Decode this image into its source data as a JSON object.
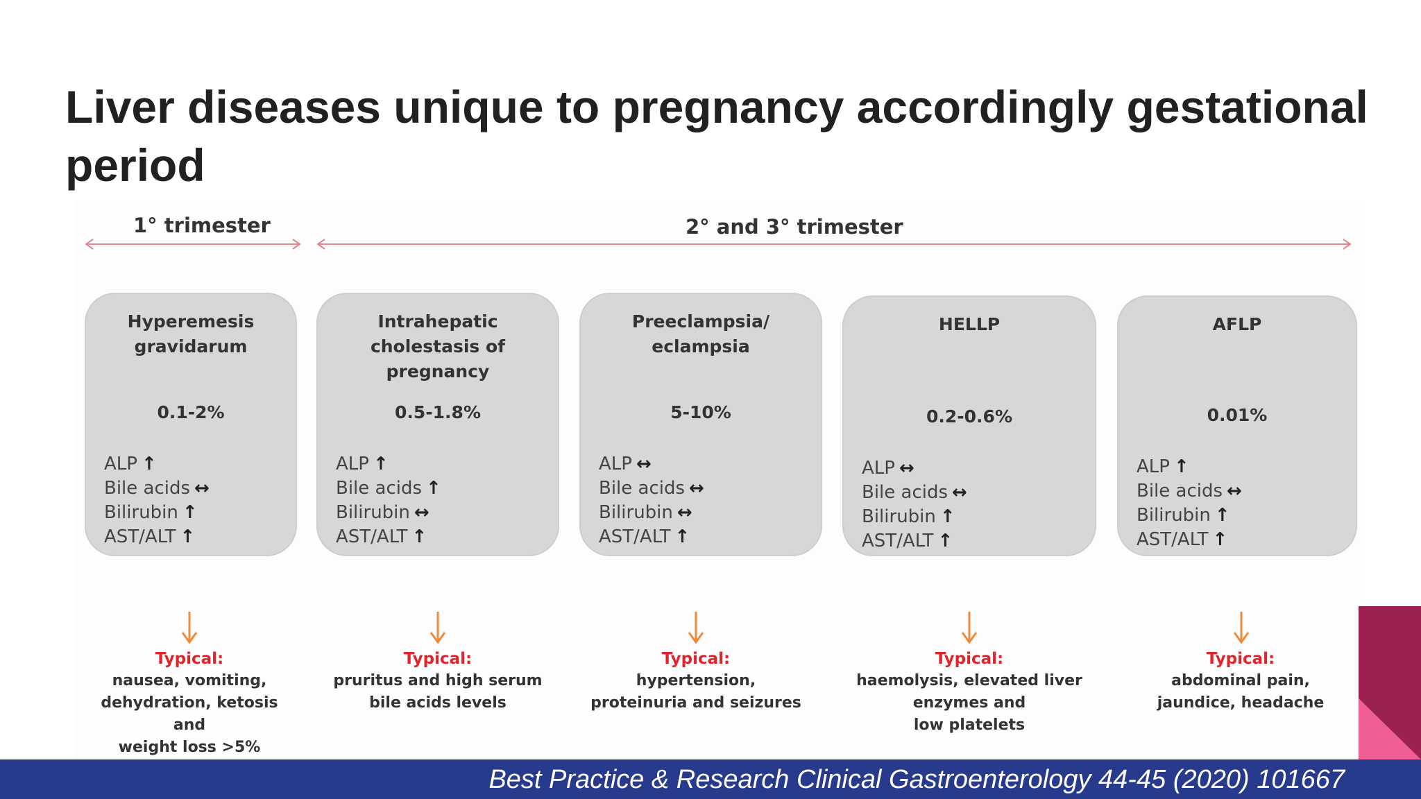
{
  "title": "Liver diseases unique to pregnancy accordingly gestational period",
  "trimesters": {
    "first": "1° trimester",
    "second_third": "2° and 3° trimester"
  },
  "cards": [
    {
      "name": "Hyperemesis\ngravidarum",
      "percent": "0.1-2%",
      "labs": [
        {
          "label": "ALP",
          "arrow": "↑"
        },
        {
          "label": "Bile acids",
          "arrow": "↔"
        },
        {
          "label": "Bilirubin",
          "arrow": "↑"
        },
        {
          "label": "AST/ALT",
          "arrow": "↑"
        }
      ],
      "typical_label": "Typical:",
      "typical_text": "nausea, vomiting,\ndehydration, ketosis\nand\nweight loss >5%"
    },
    {
      "name": "Intrahepatic\ncholestasis of\npregnancy",
      "percent": "0.5-1.8%",
      "labs": [
        {
          "label": "ALP",
          "arrow": "↑"
        },
        {
          "label": "Bile acids",
          "arrow": "↑"
        },
        {
          "label": "Bilirubin",
          "arrow": "↔"
        },
        {
          "label": "AST/ALT",
          "arrow": "↑"
        }
      ],
      "typical_label": "Typical:",
      "typical_text": "pruritus and high serum\nbile acids levels"
    },
    {
      "name": "Preeclampsia/\neclampsia",
      "percent": "5-10%",
      "labs": [
        {
          "label": "ALP",
          "arrow": "↔"
        },
        {
          "label": "Bile acids",
          "arrow": "↔"
        },
        {
          "label": "Bilirubin",
          "arrow": "↔"
        },
        {
          "label": "AST/ALT",
          "arrow": "↑"
        }
      ],
      "typical_label": "Typical:",
      "typical_text": "hypertension,\nproteinuria and seizures"
    },
    {
      "name": "HELLP",
      "percent": "0.2-0.6%",
      "labs": [
        {
          "label": "ALP",
          "arrow": "↔"
        },
        {
          "label": "Bile acids",
          "arrow": "↔"
        },
        {
          "label": "Bilirubin",
          "arrow": "↑"
        },
        {
          "label": "AST/ALT",
          "arrow": "↑"
        }
      ],
      "typical_label": "Typical:",
      "typical_text": "haemolysis, elevated liver\nenzymes and\nlow platelets"
    },
    {
      "name": "AFLP",
      "percent": "0.01%",
      "labs": [
        {
          "label": "ALP",
          "arrow": "↑"
        },
        {
          "label": "Bile acids",
          "arrow": "↔"
        },
        {
          "label": "Bilirubin",
          "arrow": "↑"
        },
        {
          "label": "AST/ALT",
          "arrow": "↑"
        }
      ],
      "typical_label": "Typical:",
      "typical_text": "abdominal pain,\njaundice, headache"
    }
  ],
  "footer": {
    "citation": "Best Practice & Research Clinical Gastroenterology 44-45 (2020) 101667"
  },
  "colors": {
    "card_bg": "#d7d6d8",
    "timeline_arrow": "#e8848e",
    "down_arrow": "#ee8a3a",
    "typical_label": "#e2242c",
    "footer_bar": "#283a8c",
    "deco_magenta": "#9b2150",
    "deco_pink": "#ef5f93"
  }
}
